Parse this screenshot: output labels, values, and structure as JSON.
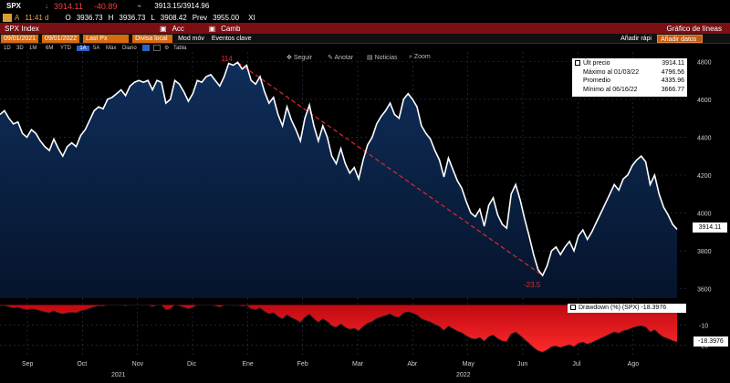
{
  "header": {
    "ticker": "SPX",
    "last": "3914.11",
    "change": "-40.89",
    "bidask": "3913.15/3914.96",
    "time_prefix": "A",
    "time": "11:41 d",
    "open_label": "O",
    "open": "3936.73",
    "high_label": "H",
    "high": "3936.73",
    "low_label": "L",
    "low": "3908.42",
    "prev_label": "Prev",
    "prev": "3955.00",
    "exchange": "XI"
  },
  "bar": {
    "security": "SPX Index",
    "actions": "Acc",
    "compare": "Camb",
    "title": "Gráfico de líneas"
  },
  "controls": {
    "start_date": "09/01/2021",
    "end_date": "09/01/2022",
    "field": "Last Px",
    "currency": "Divisa local",
    "more": "Mod móv",
    "events": "Eventos clave",
    "add": "Añadir rápi",
    "add_input": "Añadir datos"
  },
  "periods": [
    "1D",
    "3D",
    "1M",
    "6M",
    "YTD",
    "1A",
    "5A",
    "Máx",
    "Diario",
    "",
    "",
    "",
    "Tabla"
  ],
  "toolbar": {
    "follow": "Seguir",
    "annotate": "Anotar",
    "news": "Noticias",
    "zoom": "Zoom"
  },
  "annotations": {
    "peak_pct": "114",
    "trough_pct": "-23.5"
  },
  "legend": {
    "last_price_label": "Últ precio",
    "last_price": "3914.11",
    "high_label": "Máximo al 01/03/22",
    "high": "4796.56",
    "avg_label": "Promedio",
    "avg": "4335.96",
    "low_label": "Mínimo al 06/16/22",
    "low": "3666.77",
    "price_tag": "3914.11",
    "drawdown_label": "Drawdown (%) (SPX)",
    "drawdown_value": "-18.3976",
    "drawdown_tag": "-18.3976"
  },
  "colors": {
    "price_line": "#ffffff",
    "area_top": "#0d2a52",
    "area_bottom": "#07162e",
    "drawdown": "#e0161c",
    "trend": "#e0292d",
    "bar": "#7a0f14"
  },
  "chart_data": {
    "type": "line",
    "title": "",
    "xlabel": "",
    "ylabel": "",
    "ylim": [
      3550,
      4850
    ],
    "yticks": [
      "4800",
      "4600",
      "4400",
      "4200",
      "4000",
      "3800",
      "3600"
    ],
    "ytick_values": [
      4800,
      4600,
      4400,
      4200,
      4000,
      3800,
      3600
    ],
    "month_ticks": [
      "Sep",
      "Oct",
      "Nov",
      "Dic",
      "Ene",
      "Feb",
      "Mar",
      "Abr",
      "May",
      "Jun",
      "Jul",
      "Ago"
    ],
    "year_ticks": [
      "2021",
      "2022"
    ],
    "series": [
      {
        "values": [
          4520,
          4540,
          4500,
          4470,
          4480,
          4420,
          4400,
          4440,
          4420,
          4380,
          4350,
          4330,
          4390,
          4340,
          4300,
          4350,
          4370,
          4350,
          4410,
          4440,
          4490,
          4540,
          4560,
          4550,
          4600,
          4610,
          4630,
          4650,
          4620,
          4670,
          4690,
          4700,
          4690,
          4700,
          4650,
          4700,
          4690,
          4580,
          4600,
          4700,
          4680,
          4640,
          4590,
          4630,
          4700,
          4690,
          4720,
          4730,
          4700,
          4670,
          4720,
          4790,
          4780,
          4795,
          4760,
          4780,
          4700,
          4680,
          4720,
          4640,
          4580,
          4610,
          4520,
          4460,
          4560,
          4490,
          4440,
          4380,
          4500,
          4570,
          4460,
          4380,
          4460,
          4400,
          4300,
          4260,
          4340,
          4260,
          4210,
          4240,
          4180,
          4280,
          4360,
          4400,
          4470,
          4510,
          4540,
          4580,
          4520,
          4500,
          4600,
          4630,
          4600,
          4560,
          4460,
          4420,
          4390,
          4330,
          4280,
          4190,
          4290,
          4230,
          4170,
          4130,
          4060,
          4000,
          3980,
          4020,
          3930,
          4040,
          4080,
          3990,
          3940,
          3920,
          4100,
          4150,
          4070,
          3970,
          3880,
          3780,
          3700,
          3670,
          3720,
          3800,
          3820,
          3780,
          3820,
          3850,
          3800,
          3880,
          3910,
          3860,
          3900,
          3950,
          4000,
          4050,
          4100,
          4150,
          4120,
          4180,
          4200,
          4250,
          4280,
          4300,
          4270,
          4150,
          4200,
          4100,
          4030,
          3990,
          3940,
          3914
        ]
      },
      {
        "values": [
          -0.5,
          -0.4,
          -1,
          -1.5,
          -1.2,
          -2,
          -2.5,
          -2,
          -2.3,
          -3,
          -3.5,
          -4,
          -3,
          -4,
          -4.5,
          -4,
          -3.8,
          -4,
          -3,
          -2.5,
          -1.8,
          -1,
          -0.5,
          -0.6,
          0,
          0,
          0,
          0,
          -0.5,
          0,
          0,
          0,
          -0.2,
          0,
          -1,
          0,
          -0.2,
          -2.5,
          -2,
          0,
          -0.5,
          -1.2,
          -2,
          -1.3,
          0,
          -0.2,
          0,
          0,
          -0.5,
          -1.2,
          -0.2,
          0,
          -0.3,
          0,
          -0.7,
          -0.3,
          -2,
          -2.4,
          -1.6,
          -3.3,
          -4.5,
          -3.9,
          -5.8,
          -7,
          -5,
          -6.4,
          -7.4,
          -8.7,
          -6.2,
          -4.7,
          -7,
          -8.7,
          -7,
          -8.3,
          -10.4,
          -11.2,
          -9.5,
          -11.2,
          -12.2,
          -11.6,
          -12.9,
          -10.8,
          -9.1,
          -8.3,
          -6.8,
          -6,
          -5.3,
          -4.5,
          -5.8,
          -6.2,
          -4.1,
          -3.5,
          -4.1,
          -5,
          -7,
          -7.8,
          -8.5,
          -9.7,
          -10.8,
          -12.7,
          -10.6,
          -11.8,
          -13.1,
          -13.9,
          -15.4,
          -16.6,
          -17,
          -16.2,
          -18.1,
          -15.8,
          -15,
          -16.8,
          -17.9,
          -18.3,
          -14.5,
          -13.5,
          -15.2,
          -17.2,
          -19.1,
          -21.2,
          -22.8,
          -23.5,
          -22.4,
          -20.8,
          -20.4,
          -21.2,
          -20.4,
          -19.8,
          -20.8,
          -19.1,
          -18.5,
          -19.5,
          -18.7,
          -17.6,
          -16.6,
          -15.6,
          -14.5,
          -13.5,
          -14.1,
          -12.9,
          -12.4,
          -11.4,
          -10.8,
          -10.4,
          -11,
          -13.5,
          -12.4,
          -14.5,
          -16,
          -16.8,
          -17.8,
          -18.4
        ]
      }
    ],
    "drawdown_yticks": [
      "-10",
      "-20"
    ],
    "drawdown_ytick_values": [
      -10,
      -20
    ],
    "drawdown_ylim": [
      -26,
      2
    ]
  }
}
